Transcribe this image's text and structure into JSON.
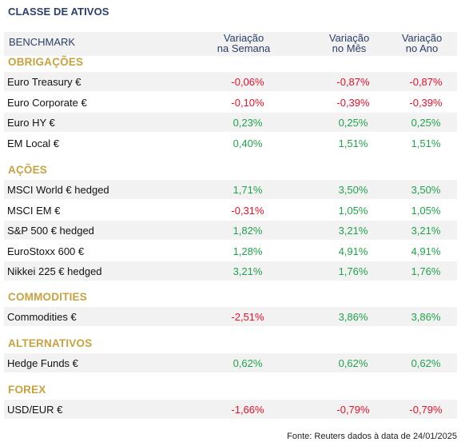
{
  "title": "CLASSE DE ATIVOS",
  "header": {
    "benchmark": "BENCHMARK",
    "col1_line1": "Variação",
    "col1_line2": "na Semana",
    "col2_line1": "Variação",
    "col2_line2": "no Mês",
    "col3_line1": "Variação",
    "col3_line2": "no Ano"
  },
  "colors": {
    "positive": "#1ea44a",
    "negative": "#e8102a",
    "section": "#c9a13f",
    "header": "#2a3f6b"
  },
  "sections": [
    {
      "name": "OBRIGAÇÕES",
      "rows": [
        {
          "name": "Euro Treasury €",
          "week": "-0,06%",
          "month": "-0,87%",
          "year": "-0,87%"
        },
        {
          "name": "Euro Corporate €",
          "week": "-0,10%",
          "month": "-0,39%",
          "year": "-0,39%"
        },
        {
          "name": "Euro HY €",
          "week": "0,23%",
          "month": "0,25%",
          "year": "0,25%"
        },
        {
          "name": "EM Local €",
          "week": "0,40%",
          "month": "1,51%",
          "year": "1,51%"
        }
      ]
    },
    {
      "name": "AÇÕES",
      "rows": [
        {
          "name": "MSCI World € hedged",
          "week": "1,71%",
          "month": "3,50%",
          "year": "3,50%"
        },
        {
          "name": "MSCI EM €",
          "week": "-0,31%",
          "month": "1,05%",
          "year": "1,05%"
        },
        {
          "name": "S&P 500 € hedged",
          "week": "1,82%",
          "month": "3,21%",
          "year": "3,21%"
        },
        {
          "name": "EuroStoxx 600 €",
          "week": "1,28%",
          "month": "4,91%",
          "year": "4,91%"
        },
        {
          "name": "Nikkei 225 € hedged",
          "week": "3,21%",
          "month": "1,76%",
          "year": "1,76%"
        }
      ]
    },
    {
      "name": "COMMODITIES",
      "rows": [
        {
          "name": "Commodities €",
          "week": "-2,51%",
          "month": "3,86%",
          "year": "3,86%"
        }
      ]
    },
    {
      "name": "ALTERNATIVOS",
      "rows": [
        {
          "name": "Hedge Funds €",
          "week": "0,62%",
          "month": "0,62%",
          "year": "0,62%"
        }
      ]
    },
    {
      "name": "FOREX",
      "rows": [
        {
          "name": "USD/EUR €",
          "week": "-1,66%",
          "month": "-0,79%",
          "year": "-0,79%"
        }
      ]
    }
  ],
  "footer": "Fonte: Reuters dados à data de 24/01/2025"
}
